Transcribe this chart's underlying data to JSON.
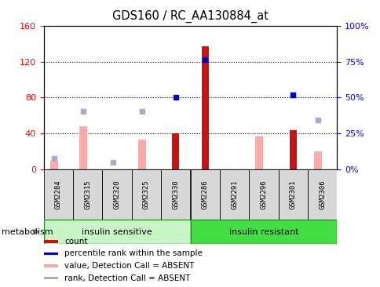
{
  "title": "GDS160 / RC_AA130884_at",
  "samples": [
    "GSM2284",
    "GSM2315",
    "GSM2320",
    "GSM2325",
    "GSM2330",
    "GSM2286",
    "GSM2291",
    "GSM2296",
    "GSM2301",
    "GSM2306"
  ],
  "groups": [
    {
      "label": "insulin sensitive",
      "color_light": "#c8f5c8",
      "color_dark": "#22cc22"
    },
    {
      "label": "insulin resistant",
      "color_light": "#44dd44",
      "color_dark": "#22aa22"
    }
  ],
  "group_sizes": [
    5,
    5
  ],
  "count": [
    0,
    0,
    0,
    0,
    40,
    137,
    0,
    0,
    44,
    0
  ],
  "percentile_rank_left": [
    null,
    null,
    null,
    null,
    80,
    122,
    null,
    null,
    83,
    null
  ],
  "value_absent": [
    10,
    48,
    0,
    33,
    0,
    0,
    0,
    37,
    0,
    20
  ],
  "rank_absent_left": [
    12,
    65,
    8,
    65,
    null,
    null,
    null,
    null,
    null,
    55
  ],
  "ylim_left": [
    0,
    160
  ],
  "ylim_right": [
    0,
    100
  ],
  "yticks_left": [
    0,
    40,
    80,
    120,
    160
  ],
  "yticks_right": [
    0,
    25,
    50,
    75,
    100
  ],
  "ytick_labels_right": [
    "0%",
    "25%",
    "50%",
    "75%",
    "100%"
  ],
  "count_color": "#cc1111",
  "percentile_color": "#0000cc",
  "value_absent_color": "#ffaaaa",
  "rank_absent_color": "#aaaacc",
  "metabolism_label": "metabolism"
}
